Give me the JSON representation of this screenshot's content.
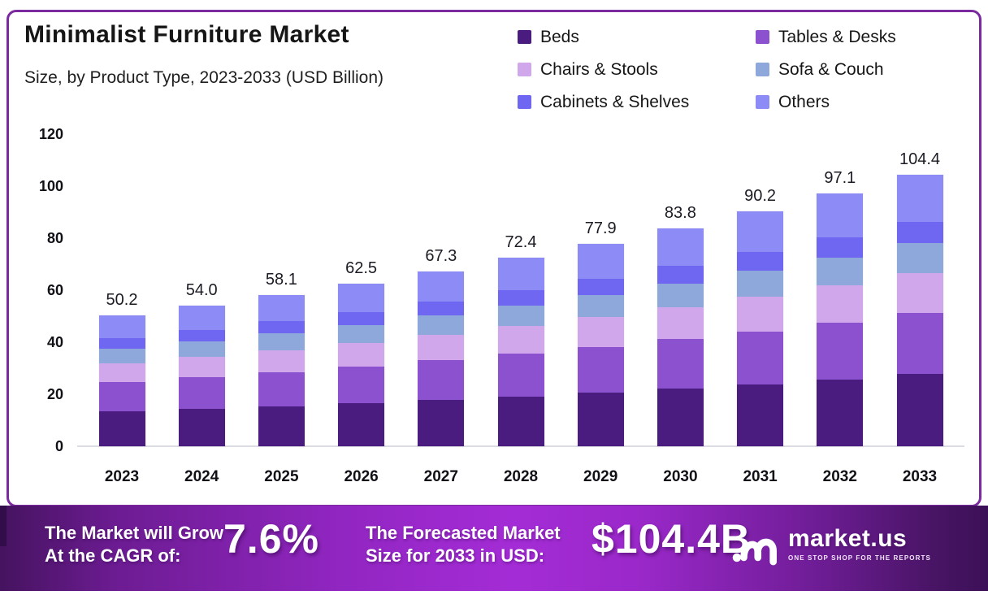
{
  "frame": {
    "border_color": "#7B2AA0",
    "background": "#FFFFFF"
  },
  "header": {
    "title": "Minimalist Furniture Market",
    "subtitle": "Size, by Product Type, 2023-2033 (USD Billion)"
  },
  "chart_data": {
    "type": "bar",
    "stacked": true,
    "title": "Minimalist Furniture Market Size, by Product Type, 2023-2033 (USD Billion)",
    "xlabel": "",
    "ylabel": "USD Billion",
    "ylim": [
      0,
      120
    ],
    "yticks": [
      0,
      20,
      40,
      60,
      80,
      100,
      120
    ],
    "grid": false,
    "legend_position": "top-right",
    "categories": [
      "2023",
      "2024",
      "2025",
      "2026",
      "2027",
      "2028",
      "2029",
      "2030",
      "2031",
      "2032",
      "2033"
    ],
    "totals": [
      50.2,
      54.0,
      58.1,
      62.5,
      67.3,
      72.4,
      77.9,
      83.8,
      90.2,
      97.1,
      104.4
    ],
    "total_labels": [
      "50.2",
      "54.0",
      "58.1",
      "62.5",
      "67.3",
      "72.4",
      "77.9",
      "83.8",
      "90.2",
      "97.1",
      "104.4"
    ],
    "series": [
      {
        "name": "Beds",
        "color": "#4B1C80",
        "values": [
          13.3,
          14.3,
          15.4,
          16.6,
          17.9,
          19.2,
          20.6,
          22.2,
          23.9,
          25.7,
          27.7
        ]
      },
      {
        "name": "Tables & Desks",
        "color": "#8B51CE",
        "values": [
          11.3,
          12.3,
          13.1,
          14.1,
          15.1,
          16.3,
          17.5,
          18.9,
          20.3,
          21.8,
          23.5
        ]
      },
      {
        "name": "Chairs & Stools",
        "color": "#CFA7EA",
        "values": [
          7.4,
          7.9,
          8.5,
          9.1,
          9.9,
          10.6,
          11.5,
          12.3,
          13.3,
          14.3,
          15.3
        ]
      },
      {
        "name": "Sofa & Couch",
        "color": "#8FA8DC",
        "values": [
          5.5,
          5.9,
          6.4,
          6.9,
          7.4,
          8.0,
          8.6,
          9.2,
          9.9,
          10.7,
          11.5
        ]
      },
      {
        "name": "Cabinets & Shelves",
        "color": "#6F66F1",
        "values": [
          4.0,
          4.3,
          4.6,
          5.0,
          5.4,
          5.8,
          6.2,
          6.7,
          7.2,
          7.8,
          8.4
        ]
      },
      {
        "name": "Others",
        "color": "#8D8BF5",
        "values": [
          8.7,
          9.3,
          10.1,
          10.8,
          11.6,
          12.5,
          13.5,
          14.5,
          15.6,
          16.8,
          18.0
        ]
      }
    ]
  },
  "footer": {
    "cagr_line1": "The Market will Grow",
    "cagr_line2": "At the CAGR of:",
    "cagr_value": "7.6%",
    "forecast_line1": "The Forecasted Market",
    "forecast_line2": "Size for 2033 in USD:",
    "forecast_value": "$104.4B",
    "brand_name": "market.us",
    "brand_tagline": "ONE STOP SHOP FOR THE REPORTS"
  }
}
